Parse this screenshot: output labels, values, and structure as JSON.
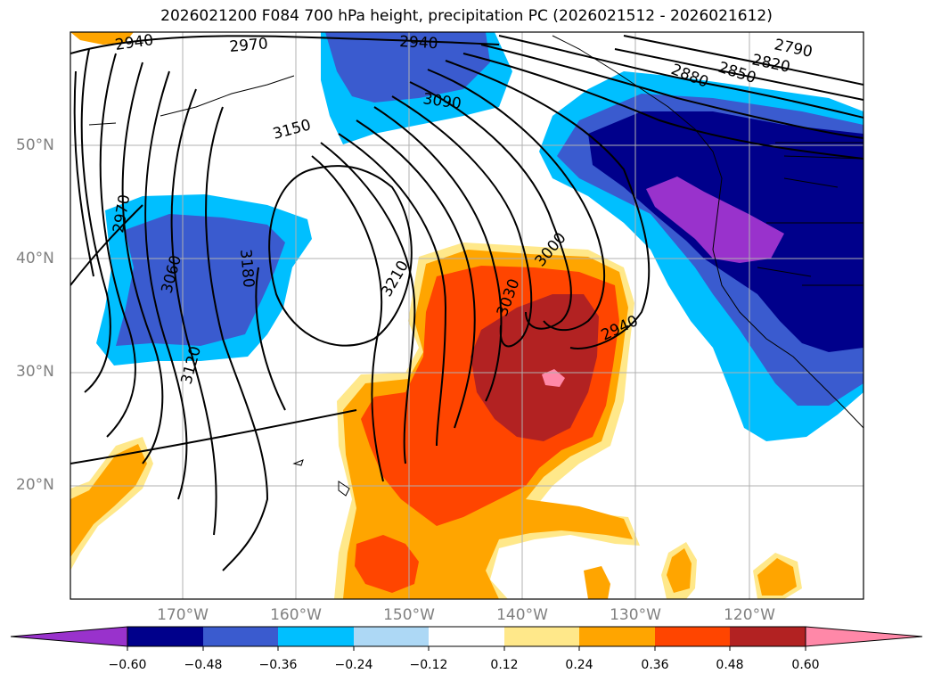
{
  "title": "2026021200 F084 700 hPa height, precipitation PC (2026021512 - 2026021612)",
  "colors": {
    "c_n060_plus": "#9932cc",
    "c_n048": "#00008b",
    "c_n036": "#3a5bcf",
    "c_n024": "#00bfff",
    "c_n012": "#add8f5",
    "c_zero": "#ffffff",
    "c_p012": "#ffe88a",
    "c_p024": "#ffa500",
    "c_p036": "#ff4500",
    "c_p048": "#b22222",
    "c_p060_plus": "#ff88a8",
    "contour": "#000000",
    "grid": "#b0b0b0",
    "axis_label": "#808080"
  },
  "lat_labels": [
    "50°N",
    "40°N",
    "30°N",
    "20°N"
  ],
  "lon_labels": [
    "170°W",
    "160°W",
    "150°W",
    "140°W",
    "130°W",
    "120°W"
  ],
  "contour_labels": [
    "2940",
    "2970",
    "2940",
    "3090",
    "3150",
    "2790",
    "2820",
    "2850",
    "2880",
    "2970",
    "3060",
    "3180",
    "3210",
    "3000",
    "3030",
    "2940",
    "3120"
  ],
  "colorbar": {
    "ticks": [
      "−0.60",
      "−0.48",
      "−0.36",
      "−0.24",
      "−0.12",
      "0.12",
      "0.24",
      "0.36",
      "0.48",
      "0.60"
    ]
  }
}
